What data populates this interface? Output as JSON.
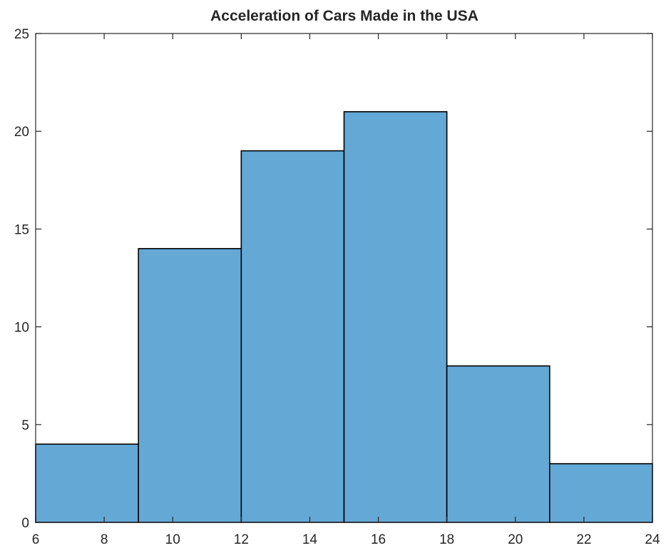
{
  "chart_data": {
    "type": "bar",
    "title": "Acceleration of Cars Made in the USA",
    "xlabel": "",
    "ylabel": "",
    "bins": [
      {
        "start": 6,
        "end": 9,
        "count": 4
      },
      {
        "start": 9,
        "end": 12,
        "count": 14
      },
      {
        "start": 12,
        "end": 15,
        "count": 19
      },
      {
        "start": 15,
        "end": 18,
        "count": 21
      },
      {
        "start": 18,
        "end": 21,
        "count": 8
      },
      {
        "start": 21,
        "end": 24,
        "count": 3
      }
    ],
    "xlim": [
      6,
      24
    ],
    "ylim": [
      0,
      25
    ],
    "xticks": [
      "6",
      "8",
      "10",
      "12",
      "14",
      "16",
      "18",
      "20",
      "22",
      "24"
    ],
    "yticks": [
      "0",
      "5",
      "10",
      "15",
      "20",
      "25"
    ],
    "bar_color": "#64a8d6",
    "edge_color": "#000000",
    "grid": false,
    "legend": "none"
  }
}
